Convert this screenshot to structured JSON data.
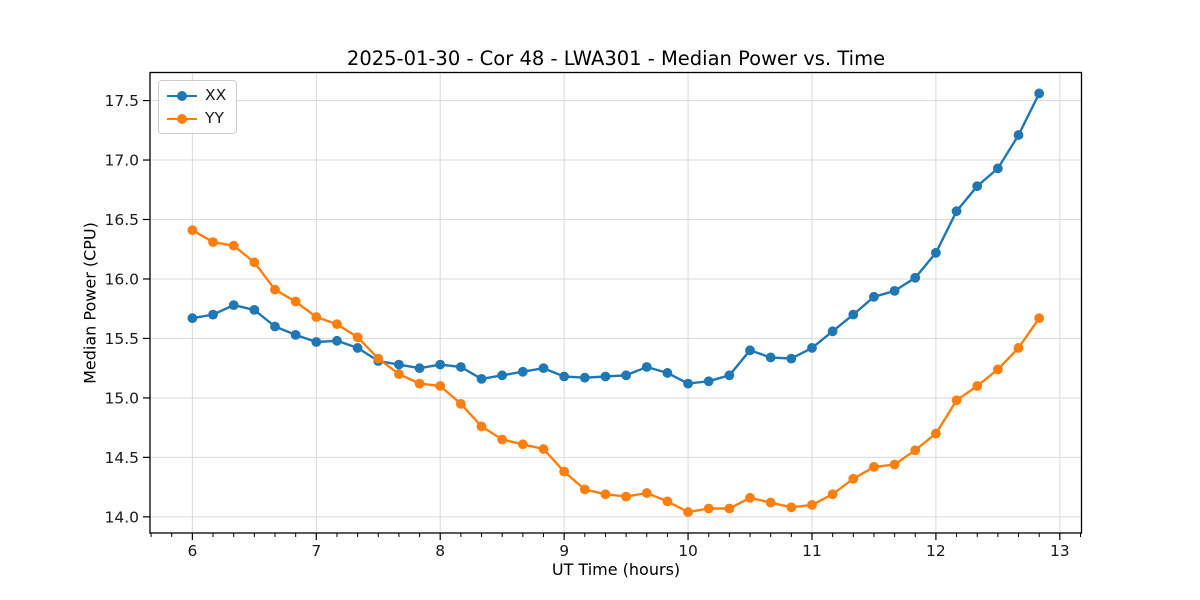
{
  "chart_data": {
    "type": "line",
    "title": "2025-01-30 - Cor 48 - LWA301 - Median Power vs. Time",
    "xlabel": "UT Time (hours)",
    "ylabel": "Median Power (CPU)",
    "xlim": [
      5.658,
      13.175
    ],
    "ylim": [
      13.864,
      17.736
    ],
    "xticks": [
      6,
      7,
      8,
      9,
      10,
      11,
      12,
      13
    ],
    "xtick_labels": [
      "6",
      "7",
      "8",
      "9",
      "10",
      "11",
      "12",
      "13"
    ],
    "x_minor_step": 0.16667,
    "yticks": [
      14.0,
      14.5,
      15.0,
      15.5,
      16.0,
      16.5,
      17.0,
      17.5
    ],
    "ytick_labels": [
      "14.0",
      "14.5",
      "15.0",
      "15.5",
      "16.0",
      "16.5",
      "17.0",
      "17.5"
    ],
    "grid": "major-both",
    "grid_color": "#d9d9d9",
    "spine_color": "#000000",
    "legend_position": "upper-left",
    "x": [
      6.0,
      6.1667,
      6.3333,
      6.5,
      6.6667,
      6.8333,
      7.0,
      7.1667,
      7.3333,
      7.5,
      7.6667,
      7.8333,
      8.0,
      8.1667,
      8.3333,
      8.5,
      8.6667,
      8.8333,
      9.0,
      9.1667,
      9.3333,
      9.5,
      9.6667,
      9.8333,
      10.0,
      10.1667,
      10.3333,
      10.5,
      10.6667,
      10.8333,
      11.0,
      11.1667,
      11.3333,
      11.5,
      11.6667,
      11.8333,
      12.0,
      12.1667,
      12.3333,
      12.5,
      12.6667,
      12.8333
    ],
    "series": [
      {
        "name": "XX",
        "color": "#1f77b4",
        "marker": "circle",
        "values": [
          15.67,
          15.7,
          15.78,
          15.74,
          15.6,
          15.53,
          15.47,
          15.48,
          15.42,
          15.31,
          15.28,
          15.25,
          15.28,
          15.26,
          15.16,
          15.19,
          15.22,
          15.25,
          15.18,
          15.17,
          15.18,
          15.19,
          15.26,
          15.21,
          15.12,
          15.14,
          15.19,
          15.4,
          15.34,
          15.33,
          15.42,
          15.56,
          15.7,
          15.85,
          15.9,
          16.01,
          16.22,
          16.57,
          16.78,
          16.93,
          17.21,
          17.56
        ]
      },
      {
        "name": "YY",
        "color": "#ff7f0e",
        "marker": "circle",
        "values": [
          16.41,
          16.31,
          16.28,
          16.14,
          15.91,
          15.81,
          15.68,
          15.62,
          15.51,
          15.33,
          15.2,
          15.12,
          15.1,
          14.95,
          14.76,
          14.65,
          14.61,
          14.57,
          14.38,
          14.23,
          14.19,
          14.17,
          14.2,
          14.13,
          14.04,
          14.07,
          14.07,
          14.16,
          14.12,
          14.08,
          14.1,
          14.19,
          14.32,
          14.42,
          14.44,
          14.56,
          14.7,
          14.98,
          15.1,
          15.24,
          15.42,
          15.67
        ]
      }
    ]
  }
}
